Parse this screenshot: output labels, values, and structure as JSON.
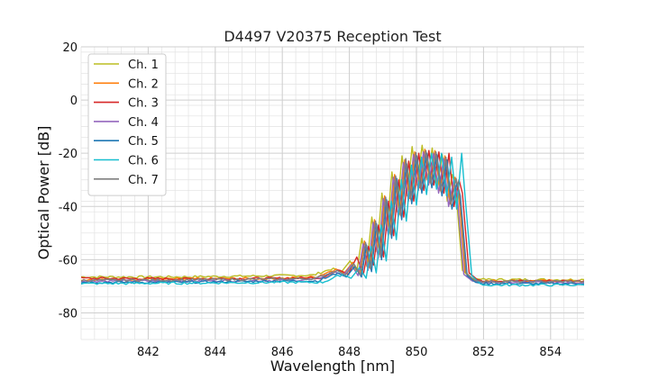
{
  "chart_data": {
    "type": "line",
    "title": "D4497 V20375 Reception Test",
    "xlabel": "Wavelength [nm]",
    "ylabel": "Optical Power [dB]",
    "xlim": [
      840.0,
      855.0
    ],
    "ylim": [
      -90,
      20
    ],
    "x_ticks": [
      842,
      844,
      846,
      848,
      850,
      852,
      854
    ],
    "y_ticks": [
      20,
      0,
      -20,
      -40,
      -60,
      -80
    ],
    "x_minor_step": 0.4,
    "y_minor_step": 4,
    "grid": true,
    "legend_position": "upper-left",
    "series": [
      {
        "name": "Ch. 1",
        "color": "#bcbd22",
        "shift": -0.08,
        "baseline": -66.5,
        "x": [
          840.0,
          843.0,
          846.0,
          847.0,
          847.6,
          847.85,
          848.1,
          848.3,
          848.45,
          848.6,
          848.75,
          848.9,
          849.05,
          849.2,
          849.35,
          849.5,
          849.65,
          849.8,
          849.95,
          850.1,
          850.25,
          850.4,
          850.55,
          850.7,
          850.85,
          851.0,
          851.15,
          851.25,
          851.45,
          851.7,
          852.0,
          853.0,
          855.0
        ],
        "y": [
          -66.5,
          -66.5,
          -66.0,
          -65.8,
          -63.2,
          -64.5,
          -60.5,
          -64.5,
          -52.0,
          -62.5,
          -44.0,
          -57.0,
          -35.0,
          -49.0,
          -27.0,
          -42.0,
          -21.0,
          -36.0,
          -17.5,
          -32.0,
          -17.0,
          -30.0,
          -18.0,
          -33.0,
          -20.5,
          -38.0,
          -28.0,
          -33.0,
          -64.0,
          -67.0,
          -67.5,
          -67.5,
          -67.5
        ]
      },
      {
        "name": "Ch. 2",
        "color": "#ff7f0e",
        "shift": 0.0,
        "baseline": -67.5,
        "x": [
          840.0,
          843.0,
          846.0,
          847.0,
          847.6,
          847.85,
          848.1,
          848.3,
          848.45,
          848.6,
          848.75,
          848.9,
          849.05,
          849.2,
          849.35,
          849.5,
          849.65,
          849.8,
          849.95,
          850.1,
          850.25,
          850.4,
          850.55,
          850.7,
          850.85,
          851.0,
          851.15,
          851.25,
          851.45,
          851.7,
          852.0,
          853.0,
          855.0
        ],
        "y": [
          -67.5,
          -67.3,
          -67.0,
          -66.5,
          -63.5,
          -65.0,
          -61.0,
          -65.0,
          -53.0,
          -63.0,
          -45.0,
          -58.0,
          -36.0,
          -50.0,
          -28.0,
          -43.0,
          -22.5,
          -37.0,
          -19.5,
          -33.0,
          -18.5,
          -31.0,
          -19.0,
          -34.0,
          -21.0,
          -39.0,
          -29.0,
          -34.0,
          -64.5,
          -67.5,
          -68.0,
          -68.0,
          -68.0
        ]
      },
      {
        "name": "Ch. 3",
        "color": "#d62728",
        "shift": 0.12,
        "baseline": -67.0,
        "x": [
          840.0,
          843.0,
          846.0,
          847.0,
          847.6,
          847.85,
          848.1,
          848.3,
          848.45,
          848.6,
          848.75,
          848.9,
          849.05,
          849.2,
          849.35,
          849.5,
          849.65,
          849.8,
          849.95,
          850.1,
          850.25,
          850.4,
          850.55,
          850.7,
          850.85,
          851.0,
          851.15,
          851.25,
          851.45,
          851.7,
          852.0,
          853.0,
          855.0
        ],
        "y": [
          -67.0,
          -67.2,
          -67.0,
          -66.8,
          -64.0,
          -65.5,
          -59.0,
          -65.5,
          -55.0,
          -62.0,
          -47.0,
          -59.0,
          -38.0,
          -51.0,
          -30.0,
          -44.0,
          -23.0,
          -38.0,
          -20.0,
          -34.0,
          -19.0,
          -32.0,
          -19.5,
          -35.0,
          -20.0,
          -40.0,
          -30.0,
          -35.0,
          -65.0,
          -67.5,
          -68.0,
          -68.0,
          -68.0
        ]
      },
      {
        "name": "Ch. 4",
        "color": "#9467bd",
        "shift": -0.04,
        "baseline": -68.0,
        "x": [
          840.0,
          843.0,
          846.0,
          847.0,
          847.6,
          847.85,
          848.1,
          848.3,
          848.45,
          848.6,
          848.75,
          848.9,
          849.05,
          849.2,
          849.35,
          849.5,
          849.65,
          849.8,
          849.95,
          850.1,
          850.25,
          850.4,
          850.55,
          850.7,
          850.85,
          851.0,
          851.15,
          851.25,
          851.45,
          851.7,
          852.0,
          853.0,
          855.0
        ],
        "y": [
          -68.0,
          -68.0,
          -67.8,
          -67.5,
          -64.5,
          -66.0,
          -62.0,
          -66.0,
          -54.0,
          -64.0,
          -46.0,
          -59.5,
          -37.0,
          -51.0,
          -29.0,
          -44.0,
          -23.5,
          -38.0,
          -20.5,
          -34.0,
          -19.5,
          -32.0,
          -20.0,
          -35.0,
          -22.0,
          -40.0,
          -30.0,
          -35.0,
          -65.5,
          -68.0,
          -68.5,
          -68.5,
          -68.5
        ]
      },
      {
        "name": "Ch. 5",
        "color": "#1f77b4",
        "shift": 0.06,
        "baseline": -68.5,
        "x": [
          840.0,
          843.0,
          846.0,
          847.0,
          847.6,
          847.85,
          848.1,
          848.3,
          848.45,
          848.6,
          848.75,
          848.9,
          849.05,
          849.2,
          849.35,
          849.5,
          849.65,
          849.8,
          849.95,
          850.1,
          850.25,
          850.4,
          850.55,
          850.7,
          850.85,
          851.0,
          851.15,
          851.25,
          851.45,
          851.7,
          852.0,
          853.0,
          855.0
        ],
        "y": [
          -68.5,
          -68.5,
          -68.0,
          -68.0,
          -65.0,
          -66.5,
          -62.5,
          -66.5,
          -54.5,
          -64.5,
          -46.5,
          -60.0,
          -37.5,
          -52.0,
          -29.5,
          -45.0,
          -24.0,
          -39.0,
          -21.0,
          -35.0,
          -20.0,
          -33.0,
          -20.5,
          -36.0,
          -22.5,
          -41.0,
          -31.0,
          -36.0,
          -66.0,
          -68.5,
          -69.0,
          -69.0,
          -69.0
        ]
      },
      {
        "name": "Ch. 6",
        "color": "#17becf",
        "shift": 0.2,
        "baseline": -69.0,
        "x": [
          840.0,
          843.0,
          846.0,
          847.0,
          847.6,
          847.85,
          848.1,
          848.3,
          848.45,
          848.6,
          848.75,
          848.9,
          849.05,
          849.2,
          849.35,
          849.5,
          849.65,
          849.8,
          849.95,
          850.1,
          850.25,
          850.4,
          850.55,
          850.7,
          850.85,
          851.0,
          851.15,
          851.25,
          851.45,
          851.7,
          852.0,
          853.0,
          855.0
        ],
        "y": [
          -69.0,
          -68.8,
          -68.5,
          -68.5,
          -65.5,
          -67.0,
          -63.0,
          -67.0,
          -55.0,
          -65.0,
          -47.0,
          -60.5,
          -38.0,
          -52.5,
          -30.0,
          -45.5,
          -24.5,
          -39.5,
          -21.5,
          -35.5,
          -20.0,
          -33.5,
          -20.0,
          -36.0,
          -21.5,
          -41.0,
          -20.0,
          -36.0,
          -66.0,
          -69.0,
          -69.5,
          -69.5,
          -69.5
        ]
      },
      {
        "name": "Ch. 7",
        "color": "#7f7f7f",
        "shift": 0.03,
        "baseline": -67.8,
        "x": [
          840.0,
          843.0,
          846.0,
          847.0,
          847.6,
          847.85,
          848.1,
          848.3,
          848.45,
          848.6,
          848.75,
          848.9,
          849.05,
          849.2,
          849.35,
          849.5,
          849.65,
          849.8,
          849.95,
          850.1,
          850.25,
          850.4,
          850.55,
          850.7,
          850.85,
          851.0,
          851.15,
          851.25,
          851.45,
          851.7,
          852.0,
          853.0,
          855.0
        ],
        "y": [
          -67.8,
          -67.6,
          -67.3,
          -67.0,
          -64.0,
          -65.8,
          -61.5,
          -65.8,
          -53.5,
          -63.5,
          -45.5,
          -59.0,
          -36.5,
          -50.5,
          -28.5,
          -43.5,
          -22.0,
          -37.5,
          -19.8,
          -33.5,
          -19.0,
          -31.5,
          -19.5,
          -34.5,
          -21.5,
          -39.5,
          -29.5,
          -34.5,
          -65.0,
          -67.8,
          -68.2,
          -68.2,
          -68.2
        ]
      }
    ]
  }
}
